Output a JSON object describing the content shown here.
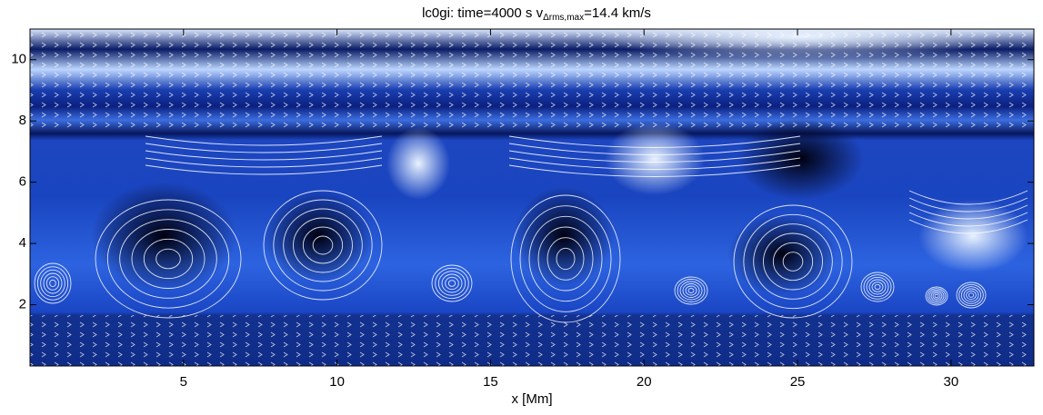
{
  "chart_data": {
    "type": "streamline",
    "title": "lc0gi:   time=4000 s  v",
    "title_subscript": "Δrms,max",
    "title_suffix": "=14.4 km/s",
    "x_label": "x [Mm]",
    "xlim": [
      0,
      32.7
    ],
    "ylim": [
      0,
      11
    ],
    "xticks": [
      5,
      10,
      15,
      20,
      25,
      30
    ],
    "yticks": [
      2,
      4,
      6,
      8,
      10
    ]
  }
}
